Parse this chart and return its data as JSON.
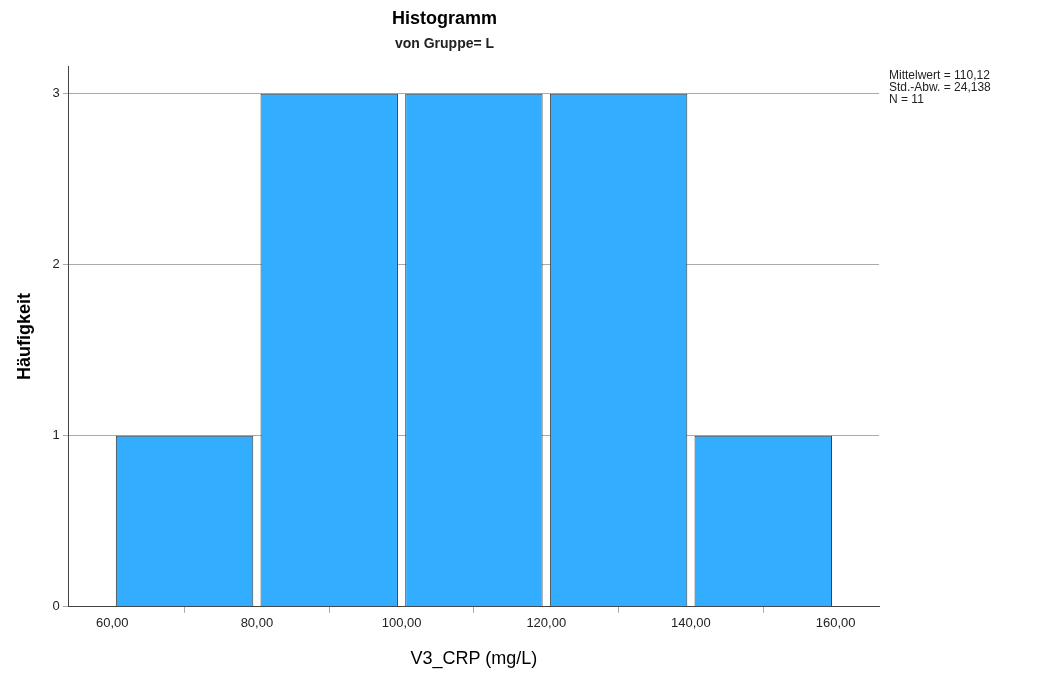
{
  "chart_data": {
    "type": "histogram",
    "title": "Histogramm",
    "subtitle": "von Gruppe= L",
    "xlabel": "V3_CRP (mg/L)",
    "ylabel": "Häufigkeit",
    "bins": [
      60,
      80,
      100,
      120,
      140,
      160
    ],
    "values": [
      1,
      3,
      3,
      3,
      1
    ],
    "color": "#33adff",
    "xlim": [
      54,
      166
    ],
    "xticks": [
      {
        "value": 60,
        "label": "60,00"
      },
      {
        "value": 80,
        "label": "80,00"
      },
      {
        "value": 100,
        "label": "100,00"
      },
      {
        "value": 120,
        "label": "120,00"
      },
      {
        "value": 140,
        "label": "140,00"
      },
      {
        "value": 160,
        "label": "160,00"
      }
    ],
    "ylim": [
      0,
      3.16
    ],
    "yticks": [
      0,
      1,
      2,
      3
    ],
    "grid": "y",
    "legend": false,
    "annotations": [
      "Mittelwert = 110,12",
      "Std.-Abw. = 24,138",
      "N = 11"
    ]
  }
}
